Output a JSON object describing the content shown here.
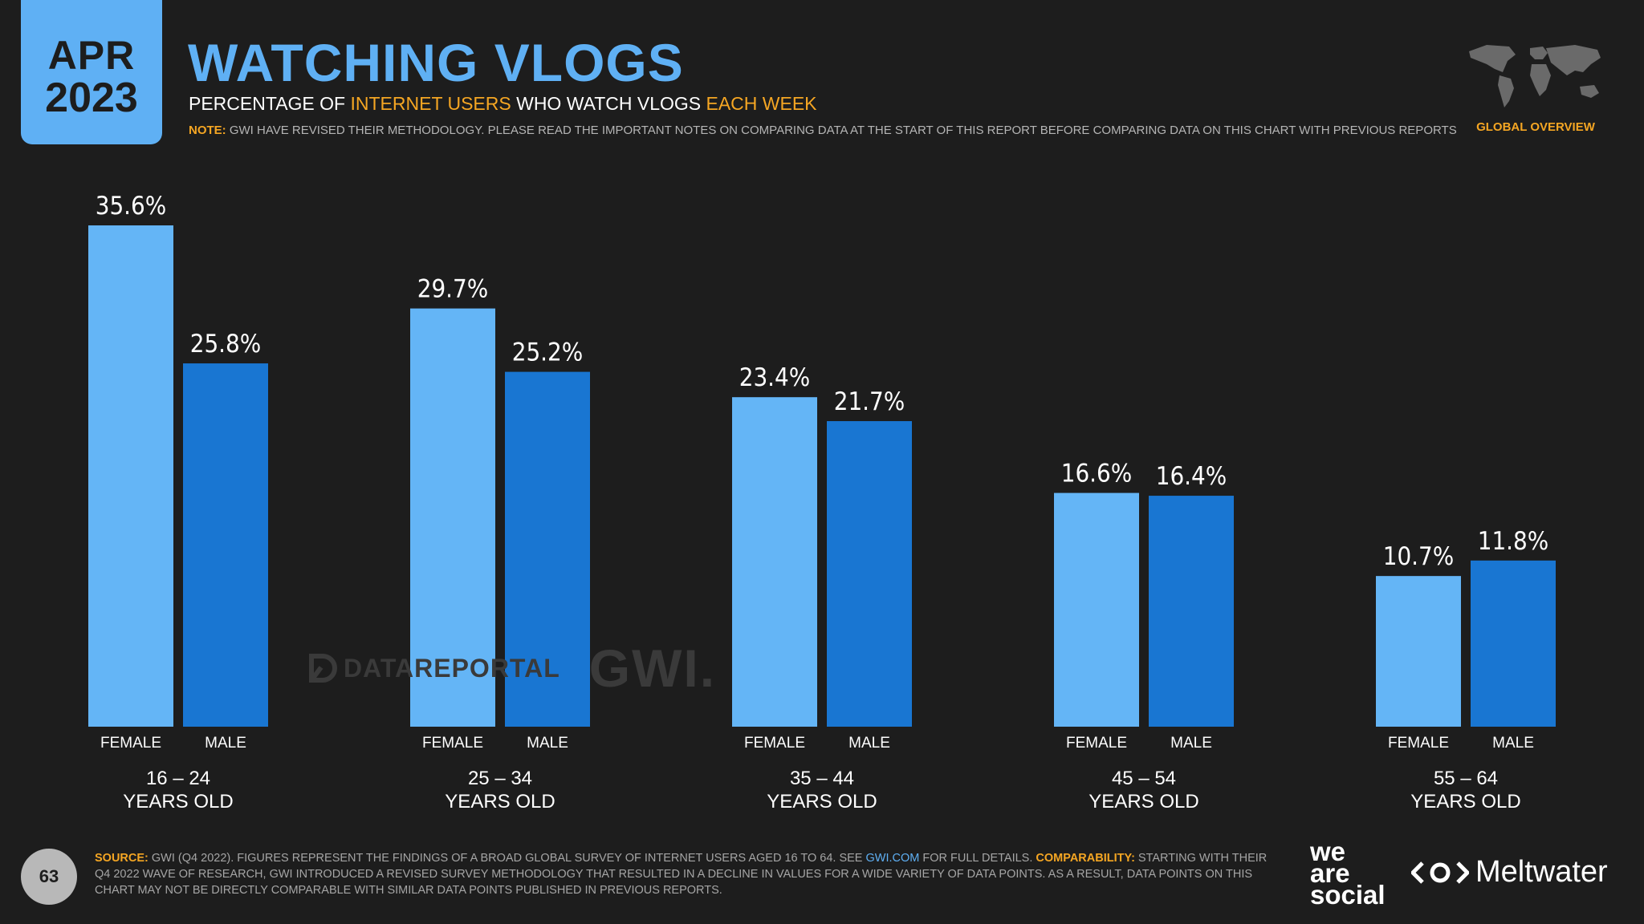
{
  "header": {
    "month": "APR",
    "year": "2023",
    "title": "WATCHING VLOGS",
    "subtitle_parts": [
      "PERCENTAGE OF ",
      "INTERNET USERS",
      " WHO WATCH VLOGS ",
      "EACH WEEK"
    ],
    "note_label": "NOTE:",
    "note_text": " GWI HAVE REVISED THEIR METHODOLOGY. PLEASE READ THE IMPORTANT NOTES ON COMPARING DATA AT THE START OF THIS REPORT BEFORE COMPARING DATA ON THIS CHART WITH PREVIOUS REPORTS",
    "region": "GLOBAL OVERVIEW"
  },
  "watermark": {
    "datareportal": "DATAREPORTAL",
    "gwi": "GWI."
  },
  "footer": {
    "page_number": "63",
    "source_label": "SOURCE:",
    "source_text": " GWI (Q4 2022). FIGURES REPRESENT THE FINDINGS OF A BROAD GLOBAL SURVEY OF INTERNET USERS AGED 16 TO 64. SEE ",
    "source_link": "GWI.COM",
    "source_text2": " FOR FULL DETAILS. ",
    "comparability_label": "COMPARABILITY:",
    "comparability_text": " STARTING WITH THEIR Q4 2022 WAVE OF RESEARCH, GWI INTRODUCED A REVISED SURVEY METHODOLOGY THAT RESULTED IN A DECLINE IN VALUES FOR A WIDE VARIETY OF DATA POINTS. AS A RESULT, DATA POINTS ON THIS CHART MAY NOT BE DIRECTLY COMPARABLE WITH SIMILAR DATA POINTS PUBLISHED IN PREVIOUS REPORTS.",
    "brand_was": [
      "we",
      "are",
      "social"
    ],
    "brand_meltwater": "Meltwater"
  },
  "colors": {
    "female": "#64b5f6",
    "male": "#1976d2",
    "accent": "#f5a623",
    "background": "#1d1d1d"
  },
  "chart_data": {
    "type": "bar",
    "title": "WATCHING VLOGS",
    "categories": [
      "16 – 24",
      "25 – 34",
      "35 – 44",
      "45 – 54",
      "55 – 64"
    ],
    "category_suffix": "YEARS OLD",
    "series": [
      {
        "name": "FEMALE",
        "values": [
          35.6,
          29.7,
          23.4,
          16.6,
          10.7
        ]
      },
      {
        "name": "MALE",
        "values": [
          25.8,
          25.2,
          21.7,
          16.4,
          11.8
        ]
      }
    ],
    "unit": "%",
    "ylim": [
      0,
      35.6
    ],
    "grid": false
  }
}
